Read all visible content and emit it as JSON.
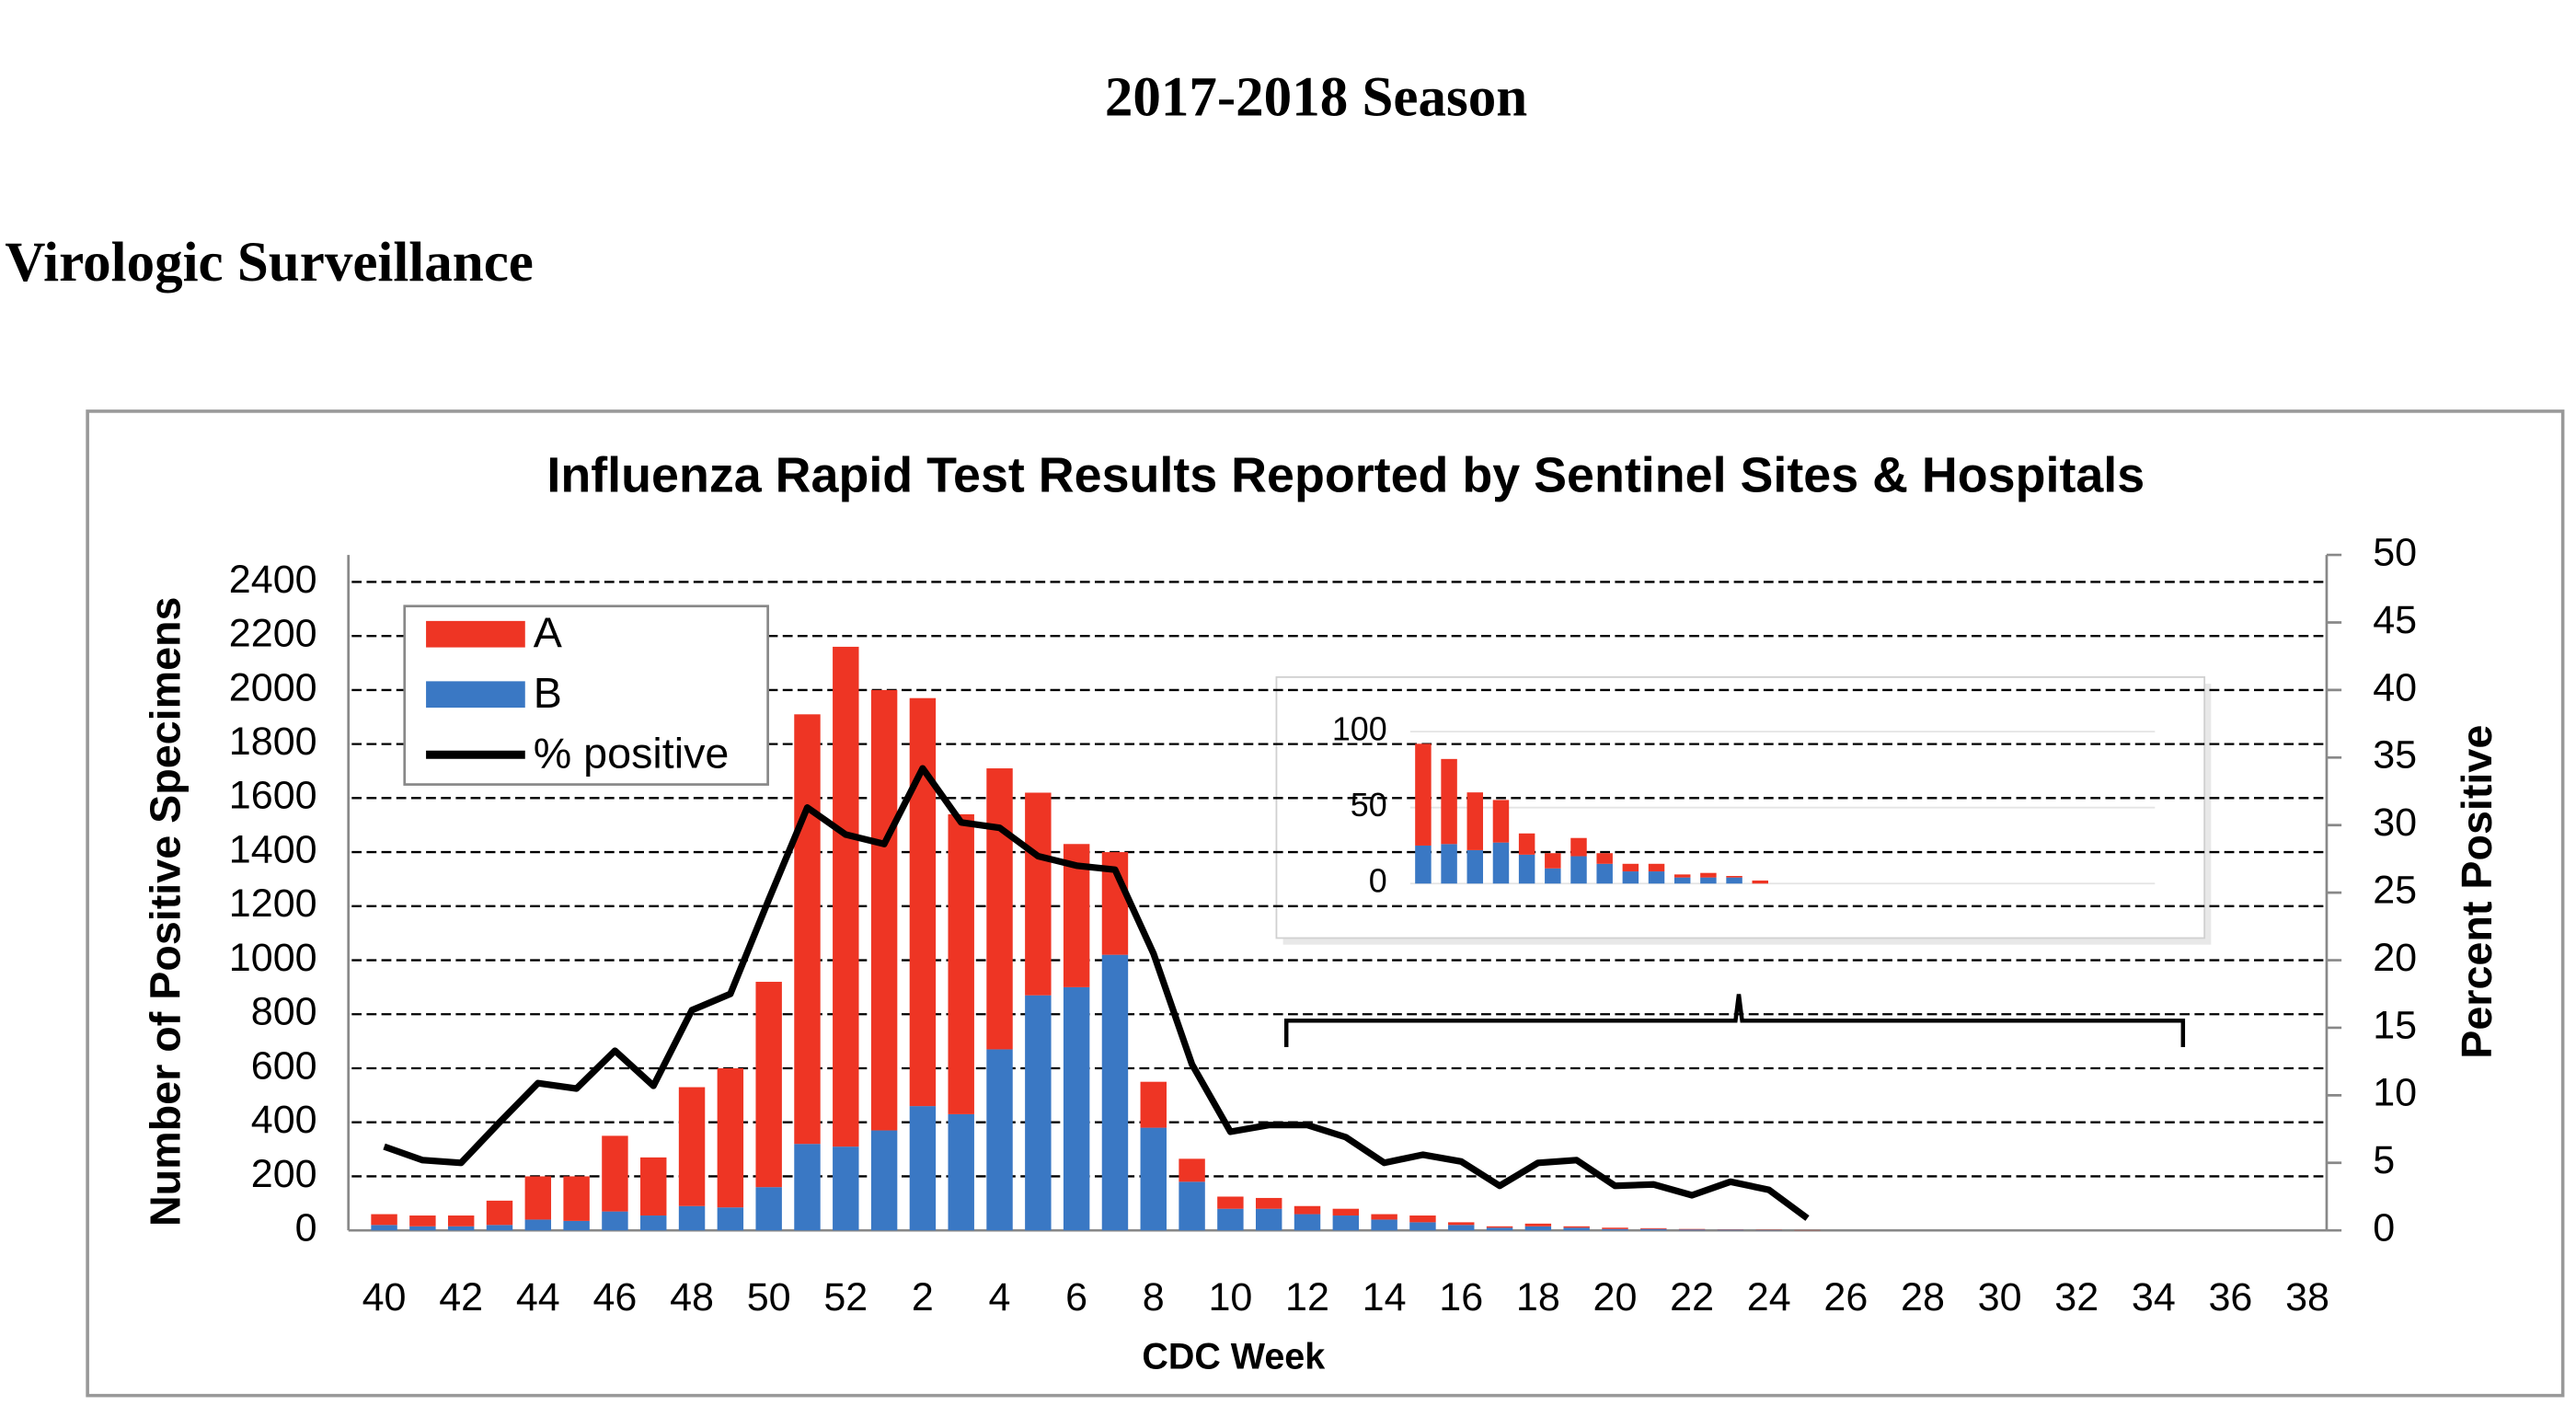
{
  "header": {
    "title": "2017-2018 Season",
    "section": "Virologic Surveillance"
  },
  "chart_data": [
    {
      "type": "bar",
      "stacked": true,
      "title": "Influenza Rapid Test Results Reported by Sentinel Sites & Hospitals",
      "xlabel": "CDC Week",
      "ylabel": "Number of Positive Specimens",
      "y2label": "Percent Positive",
      "categories": [
        "40",
        null,
        "42",
        null,
        "44",
        null,
        "46",
        null,
        "48",
        null,
        "50",
        null,
        "52",
        null,
        "2",
        null,
        "4",
        null,
        "6",
        null,
        "8",
        null,
        "10",
        null,
        "12",
        null,
        "14",
        null,
        "16",
        null,
        "18",
        null,
        "20",
        null,
        "22",
        null,
        "24",
        null,
        "26",
        null,
        "28",
        null,
        "30",
        null,
        "32",
        null,
        "34",
        null,
        "36",
        null,
        "38"
      ],
      "series": [
        {
          "name": "A",
          "color": "#ee3524",
          "values": [
            40,
            40,
            40,
            90,
            160,
            165,
            280,
            215,
            440,
            515,
            760,
            1590,
            1850,
            1630,
            1510,
            1110,
            1040,
            750,
            530,
            380,
            170,
            85,
            45,
            40,
            30,
            25,
            20,
            25,
            10,
            5,
            10,
            5,
            5,
            3,
            2,
            1,
            1,
            1,
            null,
            null,
            null,
            null,
            null,
            null,
            null,
            null,
            null,
            null,
            null,
            null,
            null
          ]
        },
        {
          "name": "B",
          "color": "#3a78c4",
          "values": [
            20,
            15,
            15,
            20,
            40,
            35,
            70,
            55,
            90,
            85,
            160,
            320,
            310,
            370,
            460,
            430,
            670,
            870,
            900,
            1020,
            380,
            180,
            80,
            80,
            60,
            55,
            40,
            30,
            20,
            10,
            15,
            10,
            5,
            5,
            3,
            2,
            1,
            0,
            null,
            null,
            null,
            null,
            null,
            null,
            null,
            null,
            null,
            null,
            null,
            null,
            null
          ]
        },
        {
          "name": "% positive",
          "type": "line",
          "axis": "y2",
          "color": "#000000",
          "values": [
            6.2,
            5.2,
            5.0,
            8.0,
            10.9,
            10.5,
            13.3,
            10.7,
            16.3,
            17.5,
            24.5,
            31.3,
            29.3,
            28.6,
            34.2,
            30.2,
            29.8,
            27.7,
            27.0,
            26.7,
            20.5,
            12.3,
            7.3,
            7.8,
            7.8,
            6.9,
            5.0,
            5.6,
            5.1,
            3.3,
            5.0,
            5.2,
            3.3,
            3.4,
            2.6,
            3.6,
            3.0,
            0.9,
            null,
            null,
            null,
            null,
            null,
            null,
            null,
            null,
            null,
            null,
            null,
            null,
            null
          ]
        }
      ],
      "ylim": [
        0,
        2500
      ],
      "yticks": [
        0,
        200,
        400,
        600,
        800,
        1000,
        1200,
        1400,
        1600,
        1800,
        2000,
        2200,
        2400
      ],
      "y2lim": [
        0,
        50
      ],
      "y2ticks": [
        0,
        5,
        10,
        15,
        20,
        25,
        30,
        35,
        40,
        45,
        50
      ],
      "grid": true,
      "legend": "top-left"
    },
    {
      "type": "bar",
      "stacked": true,
      "series": [
        {
          "color": "#ee3524",
          "values": [
            67,
            56,
            38,
            28,
            14,
            10,
            12,
            7,
            5,
            5,
            2,
            3,
            1,
            2
          ]
        },
        {
          "color": "#3a78c4",
          "values": [
            25,
            26,
            22,
            27,
            19,
            10,
            18,
            13,
            8,
            8,
            4,
            4,
            4,
            0
          ]
        }
      ],
      "ylim": [
        0,
        100
      ],
      "yticks": [
        0,
        50,
        100
      ],
      "grid": true
    }
  ]
}
